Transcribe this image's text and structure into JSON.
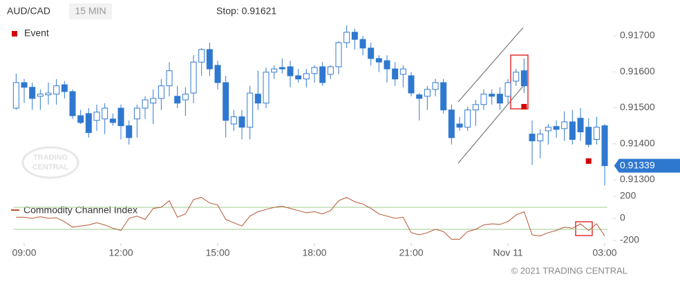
{
  "chart_data": {
    "type": "candlestick",
    "symbol": "AUD/CAD",
    "interval": "15 MIN",
    "stop_label": "Stop: 0.91621",
    "watermark": [
      "TRADING",
      "CENTRAL"
    ],
    "copyright": "© 2021 TRADING CENTRAL",
    "up_color": "#ffffff",
    "down_color": "#2f78d0",
    "edge_color": "#2f78d0",
    "x": [
      -1,
      0,
      1,
      2,
      3,
      4,
      5,
      6,
      7,
      8,
      9,
      10,
      11,
      12,
      13,
      14,
      15,
      16,
      17,
      18,
      19,
      20,
      21,
      22,
      23,
      24,
      25,
      26,
      27,
      28,
      29,
      30,
      31,
      32,
      33,
      34,
      35,
      36,
      37,
      38,
      39,
      40,
      41,
      42,
      43,
      44,
      45,
      46,
      47,
      48,
      49,
      50,
      51,
      52,
      53,
      54,
      55,
      56,
      57,
      58,
      59,
      60,
      61,
      62,
      63,
      64,
      65,
      66,
      67,
      68,
      69,
      70,
      71,
      72
    ],
    "open": [
      0.91499,
      0.9157,
      0.91557,
      0.91532,
      0.91536,
      0.91538,
      0.91564,
      0.91545,
      0.91478,
      0.91484,
      0.91465,
      0.91469,
      0.91469,
      0.91499,
      0.9145,
      0.91469,
      0.91499,
      0.91513,
      0.91526,
      0.91561,
      0.91532,
      0.91522,
      0.91541,
      0.91627,
      0.91662,
      0.91618,
      0.9157,
      0.91455,
      0.91475,
      0.91446,
      0.91538,
      0.91513,
      0.91599,
      0.91612,
      0.91614,
      0.91589,
      0.9158,
      0.91595,
      0.91614,
      0.91593,
      0.91614,
      0.91681,
      0.9171,
      0.9169,
      0.91666,
      0.91637,
      0.91631,
      0.91608,
      0.91593,
      0.91589,
      0.91536,
      0.91532,
      0.91551,
      0.9157,
      0.91494,
      0.91455,
      0.91446,
      0.91494,
      0.91509,
      0.91538,
      0.91538,
      0.91532,
      0.91574,
      0.91603,
      0.91427,
      0.91408,
      0.91436,
      0.91448,
      0.91442,
      0.91461,
      0.91471,
      0.91446,
      0.91412,
      0.9145
    ],
    "high": [
      0.91595,
      0.9158,
      0.9157,
      0.91551,
      0.9157,
      0.9158,
      0.91574,
      0.91551,
      0.91494,
      0.91499,
      0.91509,
      0.91513,
      0.91484,
      0.91509,
      0.91465,
      0.91509,
      0.91532,
      0.91551,
      0.9158,
      0.91627,
      0.91561,
      0.91557,
      0.91646,
      0.91666,
      0.91681,
      0.91631,
      0.91589,
      0.91494,
      0.91494,
      0.91561,
      0.91603,
      0.91612,
      0.91618,
      0.91637,
      0.91631,
      0.91608,
      0.91608,
      0.91618,
      0.91627,
      0.91618,
      0.91685,
      0.91729,
      0.9172,
      0.917,
      0.91681,
      0.91646,
      0.91646,
      0.91627,
      0.91618,
      0.91599,
      0.91541,
      0.91561,
      0.9158,
      0.9158,
      0.91509,
      0.91475,
      0.91503,
      0.91522,
      0.91551,
      0.91551,
      0.91557,
      0.9158,
      0.91608,
      0.91637,
      0.91465,
      0.9144,
      0.91455,
      0.91465,
      0.9149,
      0.91494,
      0.91499,
      0.91471,
      0.91475,
      0.91455
    ],
    "low": [
      0.91494,
      0.91513,
      0.91494,
      0.91494,
      0.91509,
      0.91509,
      0.91526,
      0.91469,
      0.91455,
      0.91417,
      0.91436,
      0.91427,
      0.9145,
      0.91412,
      0.91398,
      0.91417,
      0.91469,
      0.91455,
      0.91494,
      0.91532,
      0.91499,
      0.91478,
      0.91513,
      0.91589,
      0.91589,
      0.91551,
      0.91417,
      0.91436,
      0.91412,
      0.91412,
      0.91494,
      0.91499,
      0.9158,
      0.91595,
      0.91557,
      0.9157,
      0.91557,
      0.9157,
      0.91561,
      0.9158,
      0.91593,
      0.91666,
      0.91662,
      0.91646,
      0.91618,
      0.91599,
      0.9157,
      0.91561,
      0.91557,
      0.91532,
      0.91465,
      0.91494,
      0.91532,
      0.91484,
      0.91398,
      0.91436,
      0.91436,
      0.9145,
      0.91494,
      0.91509,
      0.91494,
      0.91513,
      0.91561,
      0.91541,
      0.91341,
      0.9136,
      0.91398,
      0.91417,
      0.91408,
      0.91398,
      0.91408,
      0.9139,
      0.91398,
      0.91284
    ],
    "close": [
      0.9157,
      0.91557,
      0.91526,
      0.91538,
      0.91541,
      0.91561,
      0.91545,
      0.91478,
      0.91459,
      0.91431,
      0.91488,
      0.91499,
      0.91459,
      0.9145,
      0.91417,
      0.91499,
      0.91522,
      0.91526,
      0.91561,
      0.91603,
      0.91513,
      0.91538,
      0.91627,
      0.91662,
      0.91608,
      0.9157,
      0.91465,
      0.91475,
      0.91446,
      0.91541,
      0.91513,
      0.91599,
      0.91608,
      0.91608,
      0.91589,
      0.9158,
      0.91595,
      0.91612,
      0.9157,
      0.91614,
      0.91681,
      0.9171,
      0.9169,
      0.91666,
      0.91637,
      0.91627,
      0.91608,
      0.9158,
      0.91608,
      0.91541,
      0.91526,
      0.91551,
      0.9157,
      0.91494,
      0.91417,
      0.91446,
      0.91494,
      0.91509,
      0.91538,
      0.91532,
      0.91513,
      0.9157,
      0.91599,
      0.91561,
      0.91408,
      0.91427,
      0.91446,
      0.9144,
      0.91461,
      0.91412,
      0.91433,
      0.91398,
      0.91446,
      0.91339
    ],
    "last_price": 0.91339,
    "last_color": "#2f78d0",
    "events_name": "Event",
    "events_color": "#d40000",
    "events": [
      {
        "x": 62,
        "y": 0.91503
      },
      {
        "x": 70,
        "y": 0.91352
      }
    ],
    "xlim": [
      -2,
      73
    ],
    "xticks": [
      {
        "value": 0,
        "label": "09:00"
      },
      {
        "value": 12,
        "label": "12:00"
      },
      {
        "value": 24,
        "label": "15:00"
      },
      {
        "value": 36,
        "label": "18:00"
      },
      {
        "value": 48,
        "label": "21:00"
      },
      {
        "value": 60,
        "label": "Nov 11"
      },
      {
        "value": 72,
        "label": "03:00"
      }
    ],
    "ylim": [
      0.9128,
      0.9174
    ],
    "yticks": [
      {
        "value": 0.913,
        "label": "0.91300"
      },
      {
        "value": 0.914,
        "label": "0.91400"
      },
      {
        "value": 0.915,
        "label": "0.91500"
      },
      {
        "value": 0.916,
        "label": "0.91600"
      },
      {
        "value": 0.917,
        "label": "0.91700"
      }
    ],
    "indicator": {
      "name": "Commodity Channel Index",
      "color": "#b5542f",
      "level_color": "#9ccc8c",
      "levels": [
        100,
        -100
      ],
      "ylim": [
        -225,
        225
      ],
      "yticks": [
        200,
        0,
        -200
      ],
      "values": [
        10,
        10,
        0,
        15,
        0,
        5,
        -30,
        -80,
        -70,
        -60,
        -40,
        -60,
        -90,
        -110,
        0,
        20,
        -10,
        90,
        100,
        160,
        10,
        40,
        170,
        190,
        140,
        120,
        -10,
        -40,
        -70,
        20,
        60,
        80,
        100,
        110,
        90,
        70,
        50,
        60,
        40,
        70,
        160,
        190,
        150,
        130,
        90,
        40,
        20,
        0,
        10,
        -130,
        -150,
        -130,
        -100,
        -120,
        -190,
        -190,
        -120,
        -100,
        -60,
        -50,
        -55,
        -30,
        30,
        60,
        -150,
        -160,
        -130,
        -110,
        -80,
        -90,
        -50,
        -110,
        -50,
        -160
      ]
    }
  }
}
